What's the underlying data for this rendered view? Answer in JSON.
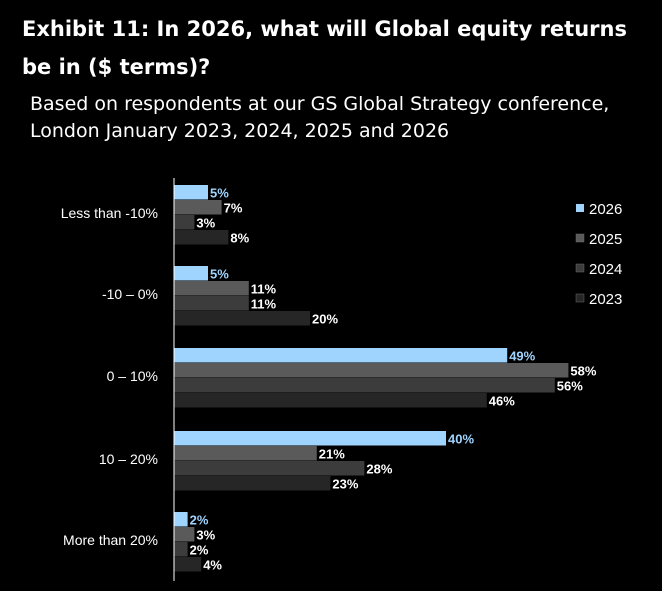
{
  "header": {
    "title": "Exhibit 11: In 2026, what will Global equity returns be in ($ terms)?",
    "subtitle": "Based on respondents at our GS Global Strategy conference, London January 2023, 2024, 2025 and 2026"
  },
  "chart_data": {
    "type": "bar",
    "orientation": "horizontal",
    "title": "Exhibit 11: In 2026, what will Global equity returns be in ($ terms)?",
    "subtitle": "Based on respondents at our GS Global Strategy conference, London January 2023, 2024, 2025 and 2026",
    "categories": [
      "Less than -10%",
      "-10 – 0%",
      "0 – 10%",
      "10 – 20%",
      "More than 20%"
    ],
    "series": [
      {
        "name": "2026",
        "color": "#9fd4ff",
        "values": [
          5,
          5,
          49,
          40,
          2
        ],
        "labels": [
          "5%",
          "5%",
          "49%",
          "40%",
          "2%"
        ]
      },
      {
        "name": "2025",
        "color": "#5a5a5a",
        "values": [
          7,
          11,
          58,
          21,
          3
        ],
        "labels": [
          "7%",
          "11%",
          "58%",
          "21%",
          "3%"
        ]
      },
      {
        "name": "2024",
        "color": "#3c3c3c",
        "values": [
          3,
          11,
          56,
          28,
          2
        ],
        "labels": [
          "3%",
          "11%",
          "56%",
          "28%",
          "2%"
        ]
      },
      {
        "name": "2023",
        "color": "#262626",
        "values": [
          8,
          20,
          46,
          23,
          4
        ],
        "labels": [
          "8%",
          "20%",
          "46%",
          "23%",
          "4%"
        ]
      }
    ],
    "xlim": [
      0,
      60
    ],
    "xlabel": "",
    "ylabel": "",
    "grid": false,
    "legend": "right",
    "value_label_unit": "%"
  }
}
